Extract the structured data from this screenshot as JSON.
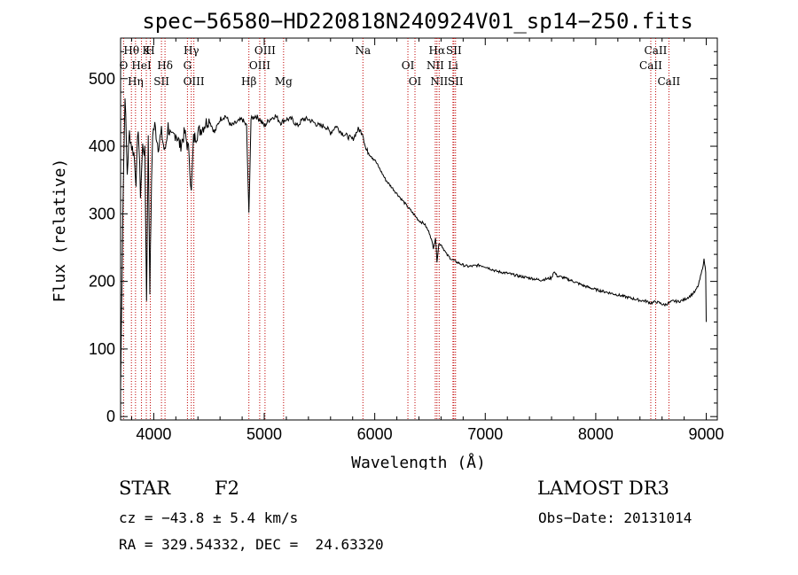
{
  "chart_data": {
    "type": "line",
    "title": "spec−56580−HD220818N240924V01_sp14−250.fits",
    "xlabel": "Wavelength (Å)",
    "ylabel": "Flux (relative)",
    "xlim": [
      3700,
      9100
    ],
    "ylim": [
      -5,
      560
    ],
    "xticks": [
      4000,
      5000,
      6000,
      7000,
      8000,
      9000
    ],
    "yticks": [
      0,
      100,
      200,
      300,
      400,
      500
    ],
    "series": [
      {
        "name": "flux",
        "x": [
          3700,
          3720,
          3740,
          3760,
          3780,
          3800,
          3820,
          3840,
          3860,
          3880,
          3900,
          3920,
          3935,
          3950,
          3965,
          3975,
          3990,
          4010,
          4040,
          4070,
          4100,
          4130,
          4160,
          4200,
          4240,
          4280,
          4320,
          4340,
          4360,
          4400,
          4450,
          4500,
          4550,
          4600,
          4650,
          4700,
          4750,
          4800,
          4840,
          4861,
          4880,
          4920,
          4960,
          5000,
          5050,
          5100,
          5150,
          5200,
          5250,
          5300,
          5350,
          5400,
          5450,
          5500,
          5550,
          5600,
          5650,
          5700,
          5750,
          5800,
          5850,
          5890,
          5920,
          5950,
          6000,
          6050,
          6100,
          6150,
          6200,
          6250,
          6300,
          6350,
          6400,
          6450,
          6500,
          6530,
          6550,
          6563,
          6580,
          6600,
          6650,
          6700,
          6750,
          6800,
          6850,
          6900,
          6950,
          7000,
          7100,
          7200,
          7300,
          7400,
          7500,
          7600,
          7620,
          7650,
          7700,
          7800,
          7900,
          8000,
          8100,
          8200,
          8300,
          8400,
          8450,
          8498,
          8542,
          8580,
          8620,
          8662,
          8700,
          8750,
          8800,
          8850,
          8900,
          8930,
          8960,
          8980,
          8995,
          9000
        ],
        "values": [
          40,
          300,
          480,
          360,
          420,
          400,
          390,
          350,
          430,
          330,
          400,
          390,
          170,
          410,
          190,
          300,
          420,
          430,
          400,
          420,
          390,
          430,
          410,
          420,
          400,
          420,
          390,
          330,
          410,
          420,
          430,
          440,
          420,
          440,
          445,
          430,
          435,
          440,
          430,
          300,
          440,
          445,
          440,
          430,
          440,
          445,
          435,
          440,
          440,
          430,
          440,
          440,
          435,
          430,
          430,
          420,
          430,
          420,
          415,
          410,
          425,
          420,
          395,
          390,
          380,
          365,
          350,
          340,
          330,
          320,
          310,
          300,
          290,
          285,
          270,
          250,
          265,
          230,
          255,
          255,
          240,
          232,
          228,
          224,
          222,
          223,
          224,
          222,
          215,
          212,
          208,
          205,
          202,
          205,
          215,
          208,
          206,
          200,
          193,
          188,
          184,
          180,
          176,
          172,
          171,
          168,
          170,
          168,
          165,
          168,
          171,
          170,
          173,
          178,
          185,
          195,
          215,
          232,
          215,
          140
        ]
      }
    ],
    "line_markers": [
      {
        "label": "Hθ",
        "wavelength": 3798
      },
      {
        "label": "O",
        "wavelength": 3727
      },
      {
        "label": "Hη",
        "wavelength": 3835
      },
      {
        "label": "K",
        "wavelength": 3933
      },
      {
        "label": "HeI",
        "wavelength": 3889
      },
      {
        "label": "SII",
        "wavelength": 4070
      },
      {
        "label": "H",
        "wavelength": 3969
      },
      {
        "label": "Hδ",
        "wavelength": 4102
      },
      {
        "label": "OIII",
        "wavelength": 4363
      },
      {
        "label": "Hγ",
        "wavelength": 4340
      },
      {
        "label": "G",
        "wavelength": 4305
      },
      {
        "label": "Hβ",
        "wavelength": 4861
      },
      {
        "label": "OIII",
        "wavelength": 5007
      },
      {
        "label": "OIII",
        "wavelength": 4959
      },
      {
        "label": "Mg",
        "wavelength": 5175
      },
      {
        "label": "Na",
        "wavelength": 5893
      },
      {
        "label": "OI",
        "wavelength": 6300
      },
      {
        "label": "OI",
        "wavelength": 6364
      },
      {
        "label": "Hα",
        "wavelength": 6563
      },
      {
        "label": "NII",
        "wavelength": 6548
      },
      {
        "label": "NII",
        "wavelength": 6583
      },
      {
        "label": "SII",
        "wavelength": 6716
      },
      {
        "label": "Li",
        "wavelength": 6708
      },
      {
        "label": "SII",
        "wavelength": 6731
      },
      {
        "label": "CaII",
        "wavelength": 8542
      },
      {
        "label": "CaII",
        "wavelength": 8498
      },
      {
        "label": "CaII",
        "wavelength": 8662
      }
    ]
  },
  "info": {
    "object_type": "STAR",
    "spectral_class": "F2",
    "survey": "LAMOST DR3",
    "redshift_text": "cz = −43.8 ± 5.4 km/s",
    "obs_date": "Obs−Date: 20131014",
    "coords": "RA = 329.54332, DEC =  24.63320"
  },
  "colors": {
    "spectrum": "#000000",
    "marker_line": "#c00000",
    "axis": "#000000"
  }
}
